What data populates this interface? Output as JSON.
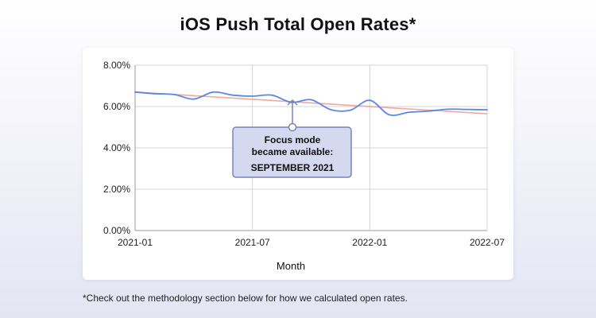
{
  "page": {
    "title": "iOS Push Total Open Rates*",
    "footnote": "*Check out the methodology section below for how we calculated open rates."
  },
  "annotation": {
    "line1": "Focus mode",
    "line2": "became available:",
    "line3": "SEPTEMBER 2021"
  },
  "colors": {
    "series": "#5b86e5",
    "trend": "#f0a89e",
    "grid": "#d4d4d4",
    "axis": "#9a9a9a",
    "annotation_fill": "#d5d9f0",
    "annotation_border": "#7c83b8"
  },
  "chart_data": {
    "type": "line",
    "title": "iOS Push Total Open Rates*",
    "xlabel": "Month",
    "ylabel": "",
    "x_ticks": [
      "2021-01",
      "2021-07",
      "2022-01",
      "2022-07"
    ],
    "y_ticks": [
      "0.00%",
      "2.00%",
      "4.00%",
      "6.00%",
      "8.00%"
    ],
    "ylim": [
      0,
      8
    ],
    "xlim": [
      "2021-01",
      "2022-07"
    ],
    "grid": true,
    "series": [
      {
        "x": [
          "2021-01",
          "2021-02",
          "2021-03",
          "2021-04",
          "2021-05",
          "2021-06",
          "2021-07",
          "2021-08",
          "2021-09",
          "2021-10",
          "2021-11",
          "2021-12",
          "2022-01",
          "2022-02",
          "2022-03",
          "2022-04",
          "2022-05",
          "2022-06",
          "2022-07"
        ],
        "values": [
          6.7,
          6.62,
          6.58,
          6.36,
          6.7,
          6.55,
          6.5,
          6.55,
          6.2,
          6.33,
          5.85,
          5.82,
          6.3,
          5.6,
          5.72,
          5.78,
          5.87,
          5.86,
          5.84
        ]
      },
      {
        "x": [
          "2021-01",
          "2022-07"
        ],
        "values": [
          6.7,
          5.65
        ]
      }
    ]
  }
}
